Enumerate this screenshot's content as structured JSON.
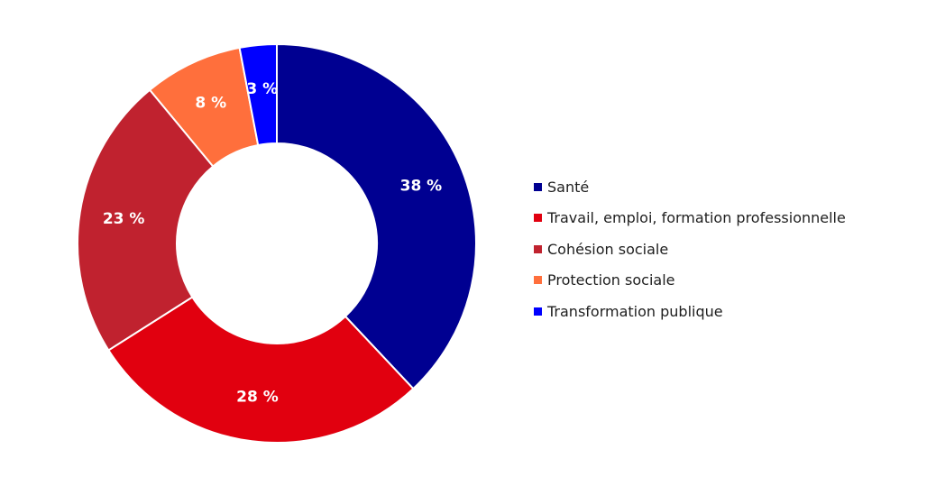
{
  "chart_data": {
    "type": "pie",
    "donut": true,
    "categories": [
      "Santé",
      "Travail, emploi, formation professionnelle",
      "Cohésion sociale",
      "Protection sociale",
      "Transformation publique"
    ],
    "values": [
      38,
      28,
      23,
      8,
      3
    ],
    "value_labels": [
      "38 %",
      "28 %",
      "23 %",
      "8 %",
      "3 %"
    ],
    "colors": [
      "#000091",
      "#e1000f",
      "#c0222f",
      "#ff6f3c",
      "#0000ff"
    ],
    "legend_position": "right"
  }
}
